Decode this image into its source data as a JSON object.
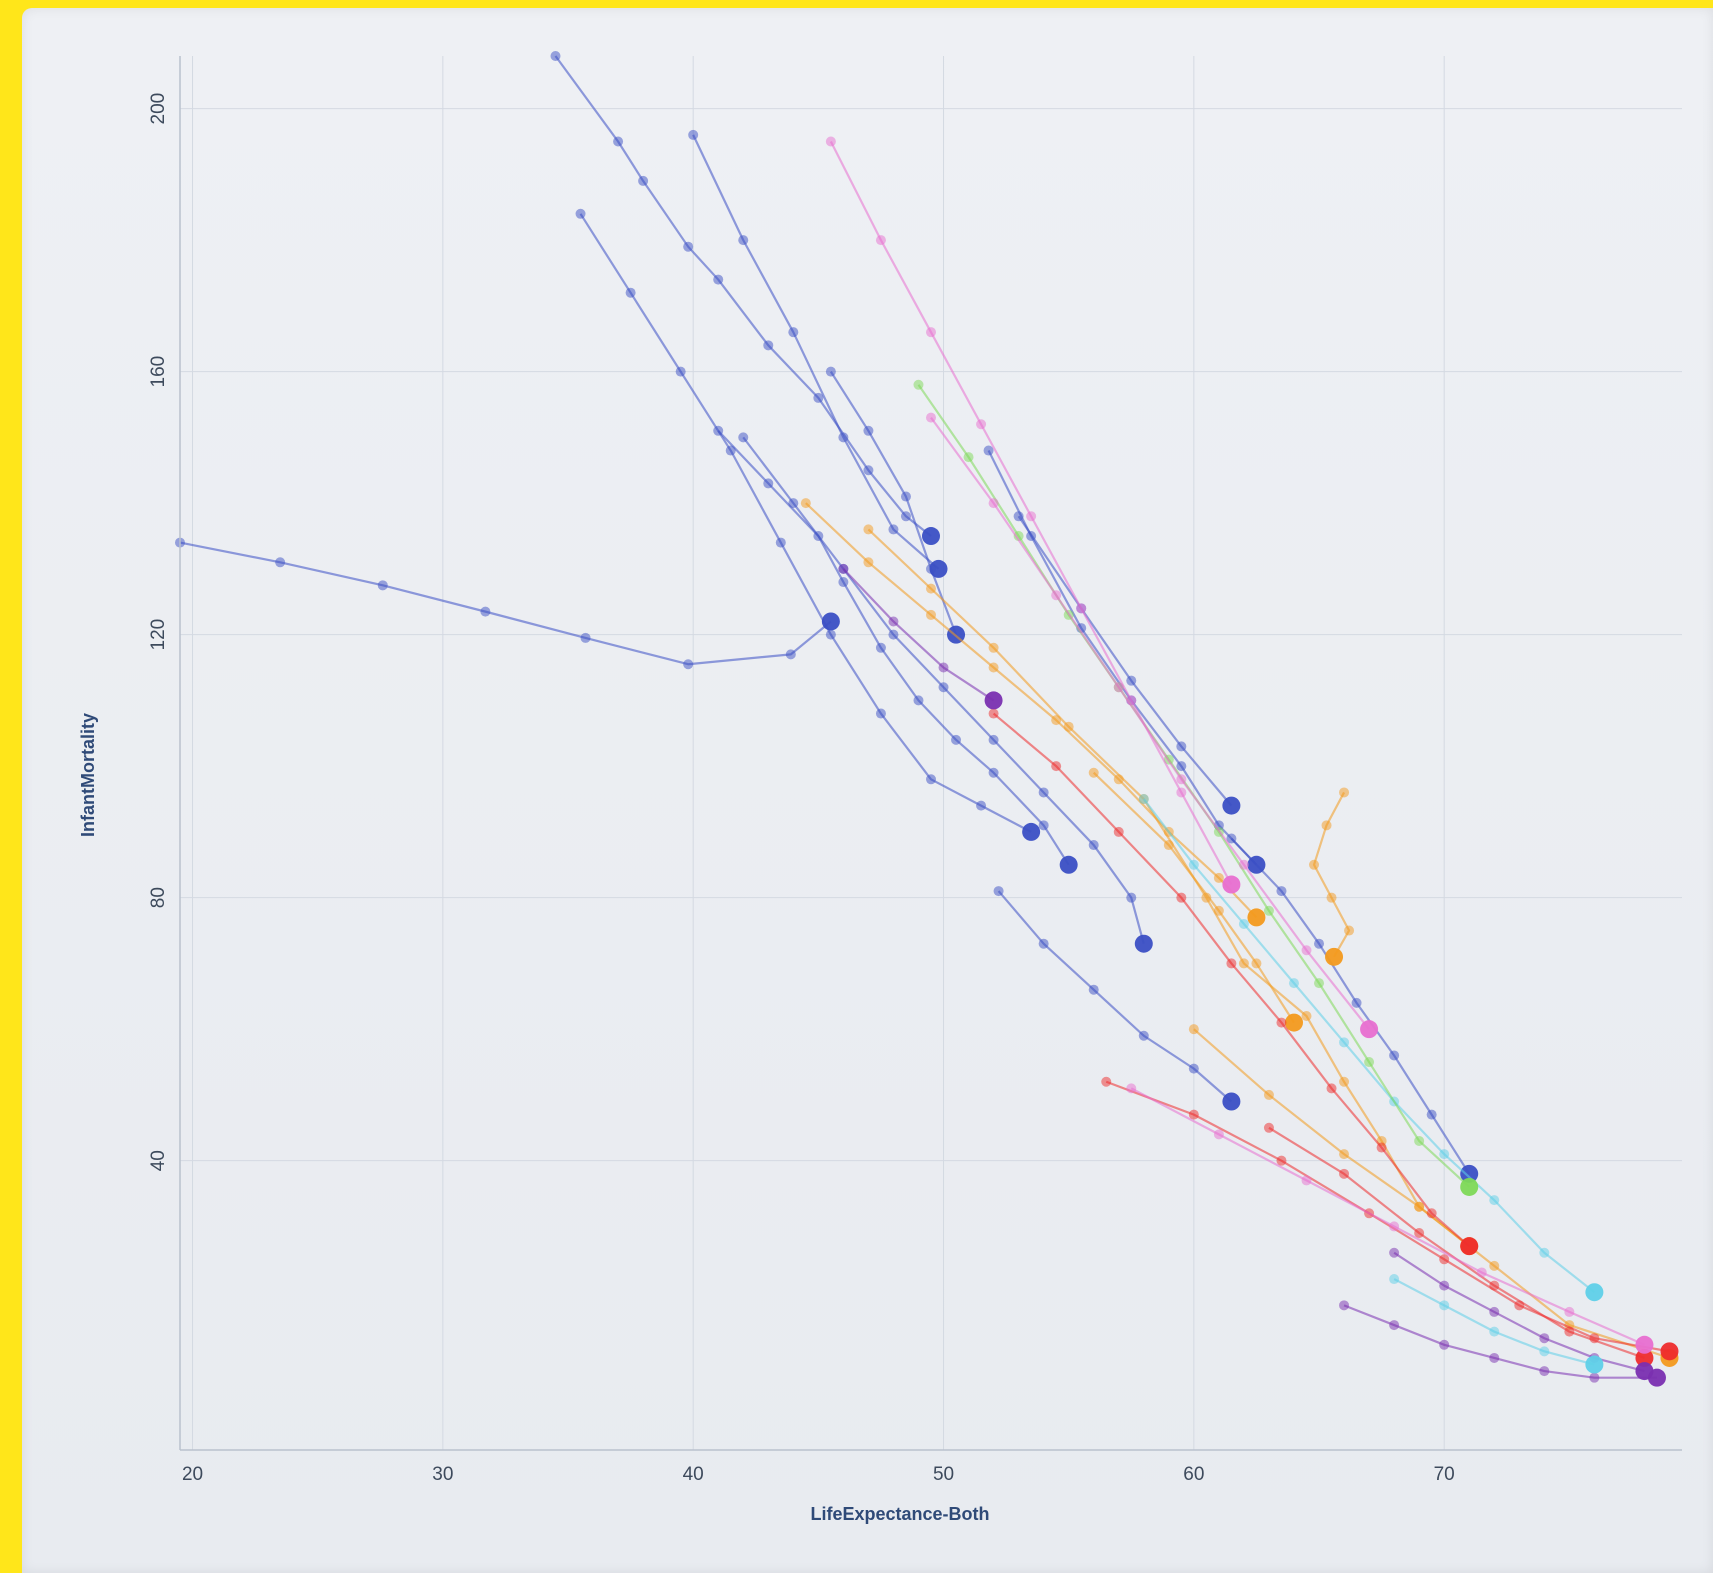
{
  "colors": {
    "frame": "#ffe61a",
    "background": "#eceef2",
    "grid": "#d4d9e2",
    "axis": "#b9c1cd",
    "tick_text": "#3d4a5c",
    "axis_title": "#2f4a78",
    "series_palette": [
      "#3b4fc4",
      "#f39a1e",
      "#ee2c2c",
      "#7a2fb0",
      "#5fd0e8",
      "#7ed957",
      "#e86fd0"
    ]
  },
  "chart_data": {
    "type": "scatter",
    "title": "",
    "xlabel": "LifeExpectance-Both",
    "ylabel": "InfantMortality",
    "xlim": [
      19.5,
      79.5
    ],
    "ylim": [
      -4,
      208
    ],
    "xticks": [
      20,
      30,
      40,
      50,
      60,
      70
    ],
    "yticks": [
      40,
      80,
      120,
      160,
      200
    ],
    "grid": true,
    "legend": "none",
    "series": [
      {
        "color": "#3b4fc4",
        "points": [
          [
            19.5,
            134
          ],
          [
            23.5,
            131
          ],
          [
            27.6,
            127.5
          ],
          [
            31.7,
            123.5
          ],
          [
            35.7,
            119.5
          ],
          [
            39.8,
            115.5
          ],
          [
            43.9,
            117
          ],
          [
            45.5,
            122
          ]
        ]
      },
      {
        "color": "#3b4fc4",
        "points": [
          [
            34.5,
            208
          ],
          [
            37,
            195
          ],
          [
            38,
            189
          ],
          [
            39.8,
            179
          ],
          [
            41,
            174
          ],
          [
            43,
            164
          ],
          [
            45,
            156
          ],
          [
            47,
            145
          ],
          [
            48.5,
            138
          ],
          [
            49.5,
            135
          ]
        ]
      },
      {
        "color": "#3b4fc4",
        "points": [
          [
            35.5,
            184
          ],
          [
            37.5,
            172
          ],
          [
            39.5,
            160
          ],
          [
            41.5,
            148
          ],
          [
            43.5,
            134
          ],
          [
            45.5,
            120
          ],
          [
            47.5,
            108
          ],
          [
            49.5,
            98
          ],
          [
            51.5,
            94
          ],
          [
            53.5,
            90
          ]
        ]
      },
      {
        "color": "#3b4fc4",
        "points": [
          [
            40,
            196
          ],
          [
            42,
            180
          ],
          [
            44,
            166
          ],
          [
            46,
            150
          ],
          [
            48,
            136
          ],
          [
            49.8,
            130
          ]
        ]
      },
      {
        "color": "#3b4fc4",
        "points": [
          [
            41,
            151
          ],
          [
            43,
            143
          ],
          [
            45,
            135
          ],
          [
            46,
            128
          ],
          [
            47.5,
            118
          ],
          [
            49,
            110
          ],
          [
            50.5,
            104
          ],
          [
            52,
            99
          ],
          [
            54,
            91
          ],
          [
            55,
            85
          ]
        ]
      },
      {
        "color": "#3b4fc4",
        "points": [
          [
            42,
            150
          ],
          [
            44,
            140
          ],
          [
            46,
            130
          ],
          [
            48,
            120
          ],
          [
            50,
            112
          ],
          [
            52,
            104
          ],
          [
            54,
            96
          ],
          [
            56,
            88
          ],
          [
            57.5,
            80
          ],
          [
            58,
            73
          ]
        ]
      },
      {
        "color": "#3b4fc4",
        "points": [
          [
            45.5,
            160
          ],
          [
            47,
            151
          ],
          [
            48.5,
            141
          ],
          [
            49.5,
            130
          ],
          [
            50.5,
            120
          ]
        ]
      },
      {
        "color": "#3b4fc4",
        "points": [
          [
            52.2,
            81
          ],
          [
            54,
            73
          ],
          [
            56,
            66
          ],
          [
            58,
            59
          ],
          [
            60,
            54
          ],
          [
            61.5,
            49
          ]
        ]
      },
      {
        "color": "#3b4fc4",
        "points": [
          [
            51.8,
            148
          ],
          [
            53.5,
            135
          ],
          [
            55.5,
            121
          ],
          [
            57.5,
            110
          ],
          [
            59.5,
            100
          ],
          [
            61,
            91
          ],
          [
            62.5,
            85
          ]
        ]
      },
      {
        "color": "#3b4fc4",
        "points": [
          [
            53,
            138
          ],
          [
            55.5,
            124
          ],
          [
            57.5,
            113
          ],
          [
            59.5,
            103
          ],
          [
            61.5,
            94
          ]
        ]
      },
      {
        "color": "#3b4fc4",
        "points": [
          [
            61.5,
            89
          ],
          [
            63.5,
            81
          ],
          [
            65,
            73
          ],
          [
            66.5,
            64
          ],
          [
            68,
            56
          ],
          [
            69.5,
            47
          ],
          [
            71,
            38
          ]
        ]
      },
      {
        "color": "#f39a1e",
        "points": [
          [
            44.5,
            140
          ],
          [
            47,
            131
          ],
          [
            49.5,
            123
          ],
          [
            52,
            115
          ],
          [
            54.5,
            107
          ],
          [
            57,
            98
          ],
          [
            59,
            90
          ],
          [
            61,
            83
          ],
          [
            62.5,
            77
          ]
        ]
      },
      {
        "color": "#f39a1e",
        "points": [
          [
            47,
            136
          ],
          [
            49.5,
            127
          ],
          [
            52,
            118
          ],
          [
            55,
            106
          ],
          [
            58,
            95
          ],
          [
            60.5,
            80
          ],
          [
            62,
            70
          ],
          [
            64.5,
            62
          ],
          [
            66,
            52
          ],
          [
            67.5,
            43
          ],
          [
            69,
            33
          ],
          [
            71,
            27
          ]
        ]
      },
      {
        "color": "#f39a1e",
        "points": [
          [
            56,
            99
          ],
          [
            59,
            88
          ],
          [
            61,
            78
          ],
          [
            62.5,
            70
          ],
          [
            64,
            61
          ]
        ]
      },
      {
        "color": "#f39a1e",
        "points": [
          [
            66,
            96
          ],
          [
            65.3,
            91
          ],
          [
            64.8,
            85
          ],
          [
            65.5,
            80
          ],
          [
            66.2,
            75
          ],
          [
            65.6,
            71
          ]
        ]
      },
      {
        "color": "#f39a1e",
        "points": [
          [
            60,
            60
          ],
          [
            63,
            50
          ],
          [
            66,
            41
          ],
          [
            69,
            33
          ],
          [
            72,
            24
          ],
          [
            75,
            15
          ],
          [
            79,
            10
          ]
        ]
      },
      {
        "color": "#ee2c2c",
        "points": [
          [
            52,
            108
          ],
          [
            54.5,
            100
          ],
          [
            57,
            90
          ],
          [
            59.5,
            80
          ],
          [
            61.5,
            70
          ],
          [
            63.5,
            61
          ],
          [
            65.5,
            51
          ],
          [
            67.5,
            42
          ],
          [
            69.5,
            32
          ],
          [
            71,
            27
          ]
        ]
      },
      {
        "color": "#ee2c2c",
        "points": [
          [
            56.5,
            52
          ],
          [
            60,
            47
          ],
          [
            63.5,
            40
          ],
          [
            67,
            32
          ],
          [
            70,
            25
          ],
          [
            73,
            18
          ],
          [
            76,
            13
          ],
          [
            79,
            11
          ]
        ]
      },
      {
        "color": "#ee2c2c",
        "points": [
          [
            63,
            45
          ],
          [
            66,
            38
          ],
          [
            69,
            29
          ],
          [
            72,
            21
          ],
          [
            75,
            14
          ],
          [
            78,
            10
          ]
        ]
      },
      {
        "color": "#7a2fb0",
        "points": [
          [
            46,
            130
          ],
          [
            48,
            122
          ],
          [
            50,
            115
          ],
          [
            52,
            110
          ]
        ]
      },
      {
        "color": "#7a2fb0",
        "points": [
          [
            66,
            18
          ],
          [
            68,
            15
          ],
          [
            70,
            12
          ],
          [
            72,
            10
          ],
          [
            74,
            8
          ],
          [
            76,
            7
          ],
          [
            78.5,
            7
          ]
        ]
      },
      {
        "color": "#7a2fb0",
        "points": [
          [
            68,
            26
          ],
          [
            70,
            21
          ],
          [
            72,
            17
          ],
          [
            74,
            13
          ],
          [
            76,
            10
          ],
          [
            78,
            8
          ]
        ]
      },
      {
        "color": "#5fd0e8",
        "points": [
          [
            58,
            95
          ],
          [
            60,
            85
          ],
          [
            62,
            76
          ],
          [
            64,
            67
          ],
          [
            66,
            58
          ],
          [
            68,
            49
          ],
          [
            70,
            41
          ],
          [
            72,
            34
          ],
          [
            74,
            26
          ],
          [
            76,
            20
          ]
        ]
      },
      {
        "color": "#5fd0e8",
        "points": [
          [
            68,
            22
          ],
          [
            70,
            18
          ],
          [
            72,
            14
          ],
          [
            74,
            11
          ],
          [
            76,
            9
          ]
        ]
      },
      {
        "color": "#7ed957",
        "points": [
          [
            49,
            158
          ],
          [
            51,
            147
          ],
          [
            53,
            135
          ],
          [
            55,
            123
          ],
          [
            57,
            112
          ],
          [
            59,
            101
          ],
          [
            61,
            90
          ],
          [
            63,
            78
          ],
          [
            65,
            67
          ],
          [
            67,
            55
          ],
          [
            69,
            43
          ],
          [
            71,
            36
          ]
        ]
      },
      {
        "color": "#e86fd0",
        "points": [
          [
            45.5,
            195
          ],
          [
            47.5,
            180
          ],
          [
            49.5,
            166
          ],
          [
            51.5,
            152
          ],
          [
            53.5,
            138
          ],
          [
            55.5,
            124
          ],
          [
            57.5,
            110
          ],
          [
            59.5,
            96
          ],
          [
            61.5,
            82
          ]
        ]
      },
      {
        "color": "#e86fd0",
        "points": [
          [
            49.5,
            153
          ],
          [
            52,
            140
          ],
          [
            54.5,
            126
          ],
          [
            57,
            112
          ],
          [
            59.5,
            98
          ],
          [
            62,
            85
          ],
          [
            64.5,
            72
          ],
          [
            67,
            60
          ]
        ]
      },
      {
        "color": "#e86fd0",
        "points": [
          [
            57.5,
            51
          ],
          [
            61,
            44
          ],
          [
            64.5,
            37
          ],
          [
            68,
            30
          ],
          [
            71.5,
            23
          ],
          [
            75,
            17
          ],
          [
            78,
            12
          ]
        ]
      }
    ]
  }
}
